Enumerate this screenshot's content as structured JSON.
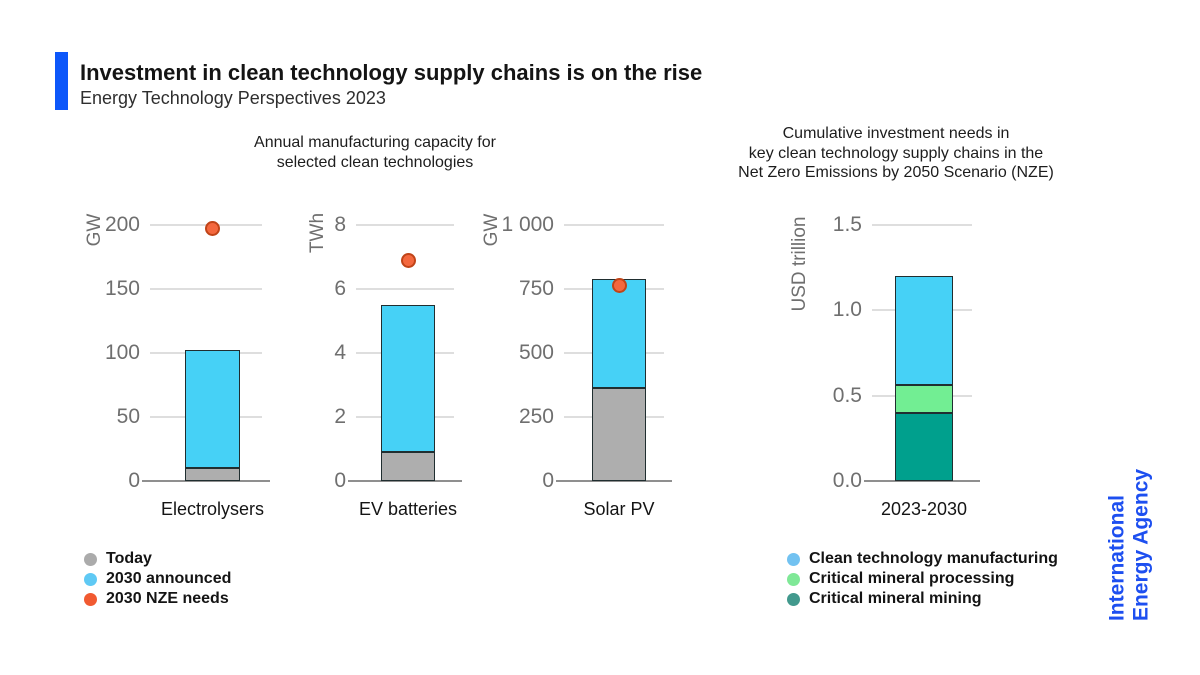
{
  "header": {
    "title": "Investment in clean technology supply chains is on the rise",
    "subtitle": "Energy Technology Perspectives 2023"
  },
  "panels": {
    "left_subtitle": "Annual manufacturing capacity for\nselected clean technologies",
    "right_subtitle": "Cumulative investment needs in\nkey clean technology supply chains in the\nNet Zero Emissions by 2050 Scenario (NZE)",
    "legend_position": "bottom",
    "gridlines": true
  },
  "colors": {
    "accent_blue": "#0d57fa",
    "logo_blue": "#1d4ff0",
    "bar_blue": "#46d1f6",
    "bar_gray": "#aeaeae",
    "bar_teal": "#00a08d",
    "bar_green": "#72ee93",
    "dot_orange": "#f4683e",
    "gridline": "#dedede",
    "axisline": "#8f8f8f"
  },
  "chart_data": [
    {
      "type": "bar",
      "ylabel": "GW",
      "category": "Electrolysers",
      "ylim": [
        0,
        200
      ],
      "tick_values": [
        0,
        50,
        100,
        150,
        200
      ],
      "tick_labels": [
        "0",
        "50",
        "100",
        "150",
        "200"
      ],
      "segments": [
        {
          "name": "Today",
          "value": 10,
          "color": "#aeaeae"
        },
        {
          "name": "2030 announced",
          "value": 92,
          "color": "#46d1f6"
        }
      ],
      "dot": {
        "name": "2030 NZE needs",
        "value": 197,
        "color": "#f4683e"
      }
    },
    {
      "type": "bar",
      "ylabel": "TWh",
      "category": "EV batteries",
      "ylim": [
        0,
        8
      ],
      "tick_values": [
        0,
        2,
        4,
        6,
        8
      ],
      "tick_labels": [
        "0",
        "2",
        "4",
        "6",
        "8"
      ],
      "segments": [
        {
          "name": "Today",
          "value": 0.9,
          "color": "#aeaeae"
        },
        {
          "name": "2030 announced",
          "value": 4.6,
          "color": "#46d1f6"
        }
      ],
      "dot": {
        "name": "2030 NZE needs",
        "value": 6.9,
        "color": "#f4683e"
      }
    },
    {
      "type": "bar",
      "ylabel": "GW",
      "category": "Solar PV",
      "ylim": [
        0,
        1000
      ],
      "tick_values": [
        0,
        250,
        500,
        750,
        1000
      ],
      "tick_labels": [
        "0",
        "250",
        "500",
        "750",
        "1 000"
      ],
      "segments": [
        {
          "name": "Today",
          "value": 365,
          "color": "#aeaeae"
        },
        {
          "name": "2030 announced",
          "value": 425,
          "color": "#46d1f6"
        }
      ],
      "dot": {
        "name": "2030 NZE needs",
        "value": 765,
        "color": "#f4683e"
      }
    },
    {
      "type": "bar",
      "ylabel": "USD trillion",
      "category": "2023-2030",
      "ylim": [
        0,
        1.5
      ],
      "tick_values": [
        0,
        0.5,
        1.0,
        1.5
      ],
      "tick_labels": [
        "0.0",
        "0.5",
        "1.0",
        "1.5"
      ],
      "segments": [
        {
          "name": "Critical mineral mining",
          "value": 0.4,
          "color": "#00a08d"
        },
        {
          "name": "Critical mineral processing",
          "value": 0.16,
          "color": "#72ee93"
        },
        {
          "name": "Clean technology manufacturing",
          "value": 0.64,
          "color": "#46d1f6"
        }
      ]
    }
  ],
  "legend_left": [
    {
      "label": "Today",
      "color": "#ababab"
    },
    {
      "label": "2030 announced",
      "color": "#5fc9f4"
    },
    {
      "label": "2030 NZE needs",
      "color": "#f15a31"
    }
  ],
  "legend_right": [
    {
      "label": "Clean technology manufacturing",
      "color": "#72c2f1"
    },
    {
      "label": "Critical mineral processing",
      "color": "#7fe897"
    },
    {
      "label": "Critical mineral mining",
      "color": "#42998d"
    }
  ],
  "logo": {
    "line1": "International",
    "line2": "Energy Agency"
  }
}
